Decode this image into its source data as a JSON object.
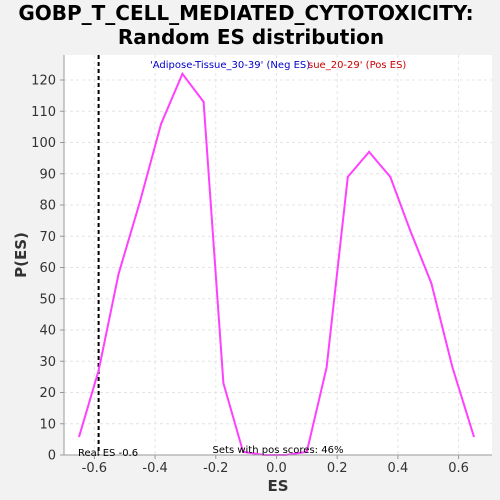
{
  "chart_data": {
    "type": "line",
    "title": "GOBP_T_CELL_MEDIATED_CYTOTOXICITY: Random ES distribution",
    "title_lines": [
      "GOBP_T_CELL_MEDIATED_CYTOTOXICITY:",
      "Random ES distribution"
    ],
    "xlabel": "ES",
    "ylabel": "P(ES)",
    "xlim": [
      -0.7,
      0.71
    ],
    "ylim": [
      0,
      128
    ],
    "xticks": [
      -0.6,
      -0.4,
      -0.2,
      0.0,
      0.2,
      0.4,
      0.6
    ],
    "xtick_labels": [
      "-0.6",
      "-0.4",
      "-0.2",
      "0.0",
      "0.2",
      "0.4",
      "0.6"
    ],
    "yticks": [
      0,
      10,
      20,
      30,
      40,
      50,
      60,
      70,
      80,
      90,
      100,
      110,
      120
    ],
    "ytick_labels": [
      "0",
      "10",
      "20",
      "30",
      "40",
      "50",
      "60",
      "70",
      "80",
      "90",
      "100",
      "110",
      "120"
    ],
    "grid": true,
    "series": [
      {
        "color": "#ff40ff",
        "x": [
          -0.65,
          -0.586,
          -0.52,
          -0.45,
          -0.38,
          -0.31,
          -0.24,
          -0.175,
          -0.11,
          -0.04,
          0.03,
          0.1,
          0.165,
          0.235,
          0.305,
          0.375,
          0.44,
          0.51,
          0.58,
          0.65
        ],
        "y": [
          6,
          27,
          58,
          81,
          106,
          122,
          113,
          23,
          1,
          0,
          0,
          1,
          28,
          89,
          97,
          89,
          72,
          55,
          28,
          6
        ]
      }
    ],
    "reference_line": {
      "x": -0.586,
      "label": "Real ES -0.6",
      "color": "#000000"
    },
    "legend": {
      "neg_label": "'Adipose-Tissue_30-39' (Neg ES)",
      "neg_color": "#0000cc",
      "pos_label": "sue_20-29' (Pos ES)",
      "pos_color": "#cc0000"
    },
    "annotation": "Sets with pos scores: 46%"
  }
}
